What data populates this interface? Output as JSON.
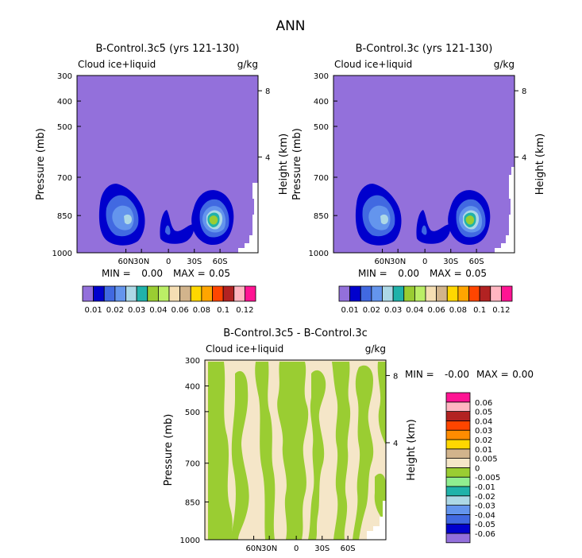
{
  "chart_data": {
    "type": "contour",
    "figure_title": "ANN",
    "panels": [
      {
        "title": "B-Control.3c5 (yrs 121-130)",
        "variable": "Cloud ice+liquid",
        "units": "g/kg",
        "ylabel": "Pressure (mb)",
        "y2label": "Height (km)",
        "yticks": [
          "300",
          "400",
          "500",
          "700",
          "850",
          "1000"
        ],
        "y2ticks": [
          "8",
          "4"
        ],
        "xticks": [
          "60N",
          "30N",
          "0",
          "30S",
          "60S"
        ],
        "min_label": "MIN =",
        "min_value": "0.00",
        "max_label": "MAX =",
        "max_value": "0.05"
      },
      {
        "title": "B-Control.3c (yrs 121-130)",
        "variable": "Cloud ice+liquid",
        "units": "g/kg",
        "ylabel": "Pressure (mb)",
        "y2label": "Height (km)",
        "yticks": [
          "300",
          "400",
          "500",
          "700",
          "850",
          "1000"
        ],
        "y2ticks": [
          "8",
          "4"
        ],
        "xticks": [
          "60N",
          "30N",
          "0",
          "30S",
          "60S"
        ],
        "min_label": "MIN =",
        "min_value": "0.00",
        "max_label": "MAX =",
        "max_value": "0.05"
      },
      {
        "title": "B-Control.3c5 - B-Control.3c",
        "variable": "Cloud ice+liquid",
        "units": "g/kg",
        "ylabel": "Pressure (mb)",
        "y2label": "Height (km)",
        "yticks": [
          "300",
          "400",
          "500",
          "700",
          "850",
          "1000"
        ],
        "y2ticks": [
          "8",
          "4"
        ],
        "xticks": [
          "60N",
          "30N",
          "0",
          "30S",
          "60S"
        ],
        "min_label": "MIN =",
        "min_value": "-0.00",
        "max_label": "MAX =",
        "max_value": "0.00"
      }
    ],
    "colorbar_top": {
      "colors": [
        "#9370DB",
        "#0000CD",
        "#4169E1",
        "#6495ED",
        "#ADD8E6",
        "#20B2AA",
        "#9ACD32",
        "#BBEE66",
        "#F5DEB3",
        "#D2B48C",
        "#FFD700",
        "#FFA500",
        "#FF4500",
        "#B22222",
        "#FFB6C1",
        "#FF1493"
      ],
      "labels": [
        "0.01",
        "0.02",
        "0.03",
        "0.04",
        "0.06",
        "0.08",
        "0.1",
        "0.12"
      ]
    },
    "colorbar_diff": {
      "colors": [
        "#9370DB",
        "#0000CD",
        "#4169E1",
        "#6495ED",
        "#ADD8E6",
        "#20B2AA",
        "#90EE90",
        "#9ACD32",
        "#F5E6C8",
        "#D2B48C",
        "#FFD700",
        "#FF8C00",
        "#FF4500",
        "#B22222",
        "#FFB6C1",
        "#FF1493"
      ],
      "labels": [
        "-0.06",
        "-0.05",
        "-0.04",
        "-0.03",
        "-0.02",
        "-0.01",
        "-0.005",
        "0",
        "0.005",
        "0.01",
        "0.02",
        "0.03",
        "0.04",
        "0.05",
        "0.06"
      ]
    }
  }
}
